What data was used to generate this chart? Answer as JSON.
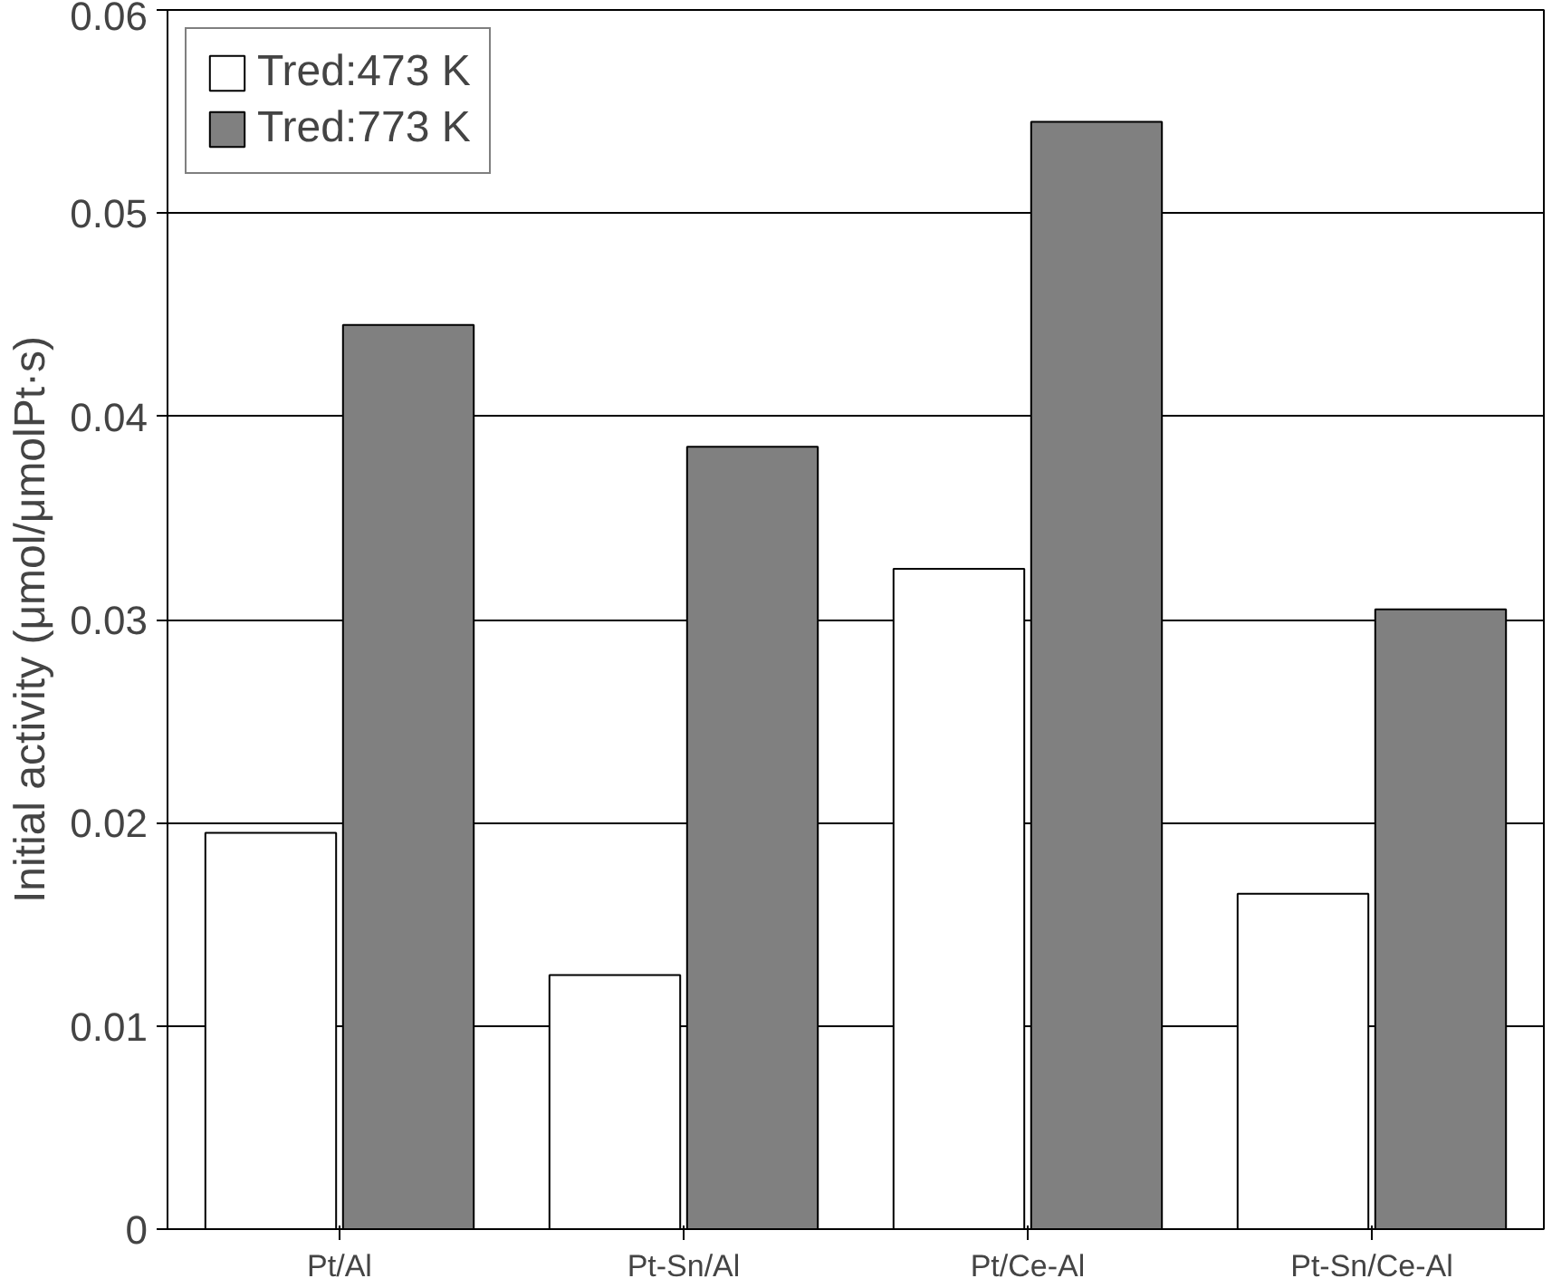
{
  "chart_data": {
    "type": "bar",
    "ylabel": "Initial activity (μmol/μmolPt·s)",
    "categories": [
      "Pt/Al",
      "Pt-Sn/Al",
      "Pt/Ce-Al",
      "Pt-Sn/Ce-Al"
    ],
    "series": [
      {
        "name": "Tred:473 K",
        "color": "#ffffff",
        "values": [
          0.0195,
          0.0125,
          0.0325,
          0.0165
        ]
      },
      {
        "name": "Tred:773 K",
        "color": "#808080",
        "values": [
          0.0445,
          0.0385,
          0.0545,
          0.0305
        ]
      }
    ],
    "ylim": [
      0,
      0.06
    ],
    "yticks": [
      0,
      0.01,
      0.02,
      0.03,
      0.04,
      0.05,
      0.06
    ],
    "grid": "y",
    "legend": "top left"
  }
}
